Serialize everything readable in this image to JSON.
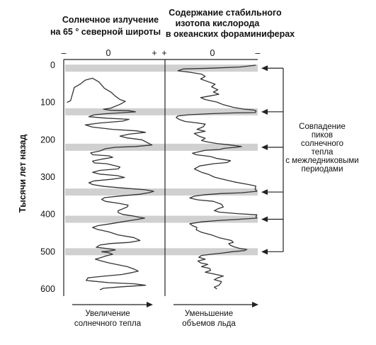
{
  "chart_data": {
    "type": "line",
    "panel_left_title": [
      "Солнечное излучение",
      "на 65 ° северной широты"
    ],
    "panel_right_title": [
      "Содержание стабильного",
      "изотопа кислорода",
      "в океанских фораминиферах"
    ],
    "ylabel": "Тысячи лет назад",
    "yticks": [
      "0",
      "100",
      "200",
      "300",
      "400",
      "500",
      "600"
    ],
    "ylim": [
      0,
      600
    ],
    "left_scale": {
      "minus": "–",
      "zero": "0",
      "plus": "+"
    },
    "right_scale": {
      "plus": "+",
      "zero": "0",
      "minus": "–"
    },
    "xlabel_left": [
      "Увеличение",
      "солнечного тепла"
    ],
    "xlabel_right": [
      "Уменьшение",
      "объемов льда"
    ],
    "annotation": [
      "Совпадение",
      "пиков",
      "солнечного",
      "тепла",
      "с межледниковыми",
      "периодами"
    ],
    "highlight_bands_kyr": [
      8,
      125,
      220,
      340,
      413,
      500
    ],
    "series": [
      {
        "panel": "left",
        "x_domain": [
          0,
          100
        ],
        "points": [
          [
            2,
            100
          ],
          [
            6,
            95
          ],
          [
            10,
            60
          ],
          [
            17,
            50
          ],
          [
            22,
            40
          ],
          [
            30,
            35
          ],
          [
            37,
            45
          ],
          [
            43,
            62
          ],
          [
            50,
            72
          ],
          [
            55,
            83
          ],
          [
            60,
            92
          ],
          [
            66,
            97
          ],
          [
            60,
            105
          ],
          [
            50,
            115
          ],
          [
            42,
            118
          ],
          [
            50,
            121
          ],
          [
            70,
            122
          ],
          [
            77,
            125
          ],
          [
            65,
            127
          ],
          [
            45,
            130
          ],
          [
            32,
            133
          ],
          [
            26,
            138
          ],
          [
            45,
            142
          ],
          [
            70,
            145
          ],
          [
            63,
            150
          ],
          [
            38,
            155
          ],
          [
            22,
            160
          ],
          [
            30,
            166
          ],
          [
            52,
            172
          ],
          [
            78,
            176
          ],
          [
            88,
            180
          ],
          [
            70,
            185
          ],
          [
            60,
            190
          ],
          [
            68,
            195
          ],
          [
            84,
            200
          ],
          [
            88,
            205
          ],
          [
            95,
            214
          ],
          [
            77,
            218
          ],
          [
            55,
            220
          ],
          [
            44,
            224
          ],
          [
            38,
            230
          ],
          [
            28,
            235
          ],
          [
            30,
            240
          ],
          [
            48,
            243
          ],
          [
            52,
            247
          ],
          [
            40,
            252
          ],
          [
            30,
            257
          ],
          [
            32,
            262
          ],
          [
            45,
            264
          ],
          [
            54,
            269
          ],
          [
            60,
            273
          ],
          [
            58,
            278
          ],
          [
            38,
            282
          ],
          [
            30,
            287
          ],
          [
            38,
            292
          ],
          [
            57,
            296
          ],
          [
            65,
            301
          ],
          [
            50,
            306
          ],
          [
            32,
            310
          ],
          [
            26,
            315
          ],
          [
            30,
            320
          ],
          [
            43,
            325
          ],
          [
            67,
            330
          ],
          [
            88,
            334
          ],
          [
            97,
            338
          ],
          [
            93,
            341
          ],
          [
            82,
            346
          ],
          [
            63,
            350
          ],
          [
            43,
            355
          ],
          [
            40,
            360
          ],
          [
            44,
            365
          ],
          [
            58,
            370
          ],
          [
            69,
            375
          ],
          [
            68,
            380
          ],
          [
            63,
            385
          ],
          [
            58,
            390
          ],
          [
            58,
            395
          ],
          [
            63,
            400
          ],
          [
            74,
            404
          ],
          [
            82,
            408
          ],
          [
            87,
            410
          ],
          [
            80,
            413
          ],
          [
            72,
            416
          ],
          [
            62,
            420
          ],
          [
            50,
            425
          ],
          [
            36,
            430
          ],
          [
            30,
            435
          ],
          [
            35,
            440
          ],
          [
            48,
            447
          ],
          [
            58,
            455
          ],
          [
            75,
            462
          ],
          [
            82,
            470
          ],
          [
            70,
            475
          ],
          [
            50,
            478
          ],
          [
            38,
            482
          ],
          [
            34,
            488
          ],
          [
            48,
            492
          ],
          [
            55,
            495
          ],
          [
            49,
            498
          ],
          [
            40,
            500
          ],
          [
            48,
            503
          ],
          [
            52,
            507
          ],
          [
            45,
            511
          ],
          [
            40,
            515
          ],
          [
            33,
            520
          ],
          [
            40,
            525
          ],
          [
            48,
            530
          ],
          [
            58,
            535
          ],
          [
            68,
            540
          ],
          [
            75,
            546
          ],
          [
            80,
            552
          ],
          [
            73,
            556
          ],
          [
            62,
            561
          ],
          [
            40,
            566
          ],
          [
            25,
            570
          ],
          [
            23,
            577
          ],
          [
            48,
            583
          ],
          [
            76,
            586
          ],
          [
            88,
            590
          ],
          [
            62,
            594
          ],
          [
            42,
            598
          ],
          [
            38,
            602
          ]
        ]
      },
      {
        "panel": "right",
        "x_domain": [
          0,
          100
        ],
        "points": [
          [
            98,
            0
          ],
          [
            80,
            5
          ],
          [
            50,
            8
          ],
          [
            18,
            10
          ],
          [
            12,
            15
          ],
          [
            25,
            19
          ],
          [
            38,
            24
          ],
          [
            42,
            30
          ],
          [
            37,
            37
          ],
          [
            45,
            44
          ],
          [
            53,
            51
          ],
          [
            49,
            58
          ],
          [
            56,
            66
          ],
          [
            51,
            72
          ],
          [
            57,
            78
          ],
          [
            46,
            83
          ],
          [
            37,
            87
          ],
          [
            42,
            92
          ],
          [
            55,
            99
          ],
          [
            62,
            106
          ],
          [
            73,
            113
          ],
          [
            85,
            118
          ],
          [
            95,
            120
          ],
          [
            98,
            122
          ],
          [
            98,
            125
          ],
          [
            97,
            127
          ],
          [
            73,
            128
          ],
          [
            48,
            130
          ],
          [
            24,
            133
          ],
          [
            12,
            136
          ],
          [
            10,
            140
          ],
          [
            13,
            145
          ],
          [
            20,
            151
          ],
          [
            31,
            154
          ],
          [
            42,
            158
          ],
          [
            40,
            165
          ],
          [
            33,
            172
          ],
          [
            42,
            177
          ],
          [
            30,
            183
          ],
          [
            35,
            190
          ],
          [
            42,
            196
          ],
          [
            38,
            202
          ],
          [
            45,
            206
          ],
          [
            55,
            210
          ],
          [
            70,
            214
          ],
          [
            82,
            218
          ],
          [
            76,
            220
          ],
          [
            63,
            223
          ],
          [
            58,
            226
          ],
          [
            42,
            228
          ],
          [
            35,
            232
          ],
          [
            28,
            236
          ],
          [
            32,
            240
          ],
          [
            48,
            245
          ],
          [
            55,
            250
          ],
          [
            70,
            256
          ],
          [
            66,
            261
          ],
          [
            52,
            264
          ],
          [
            36,
            270
          ],
          [
            30,
            278
          ],
          [
            38,
            287
          ],
          [
            46,
            293
          ],
          [
            52,
            300
          ],
          [
            64,
            307
          ],
          [
            74,
            313
          ],
          [
            90,
            320
          ],
          [
            98,
            324
          ],
          [
            97,
            332
          ],
          [
            99,
            338
          ],
          [
            82,
            342
          ],
          [
            60,
            344
          ],
          [
            42,
            347
          ],
          [
            30,
            351
          ],
          [
            25,
            356
          ],
          [
            34,
            361
          ],
          [
            51,
            365
          ],
          [
            60,
            373
          ],
          [
            62,
            380
          ],
          [
            56,
            385
          ],
          [
            52,
            390
          ],
          [
            58,
            394
          ],
          [
            78,
            398
          ],
          [
            99,
            401
          ],
          [
            98,
            406
          ],
          [
            99,
            410
          ],
          [
            80,
            413
          ],
          [
            58,
            416
          ],
          [
            38,
            420
          ],
          [
            25,
            425
          ],
          [
            28,
            430
          ],
          [
            33,
            435
          ],
          [
            32,
            441
          ],
          [
            38,
            448
          ],
          [
            49,
            455
          ],
          [
            58,
            463
          ],
          [
            71,
            470
          ],
          [
            73,
            475
          ],
          [
            68,
            478
          ],
          [
            70,
            483
          ],
          [
            74,
            487
          ],
          [
            80,
            491
          ],
          [
            88,
            494
          ],
          [
            85,
            497
          ],
          [
            72,
            500
          ],
          [
            60,
            504
          ],
          [
            48,
            507
          ],
          [
            38,
            510
          ],
          [
            35,
            515
          ],
          [
            42,
            520
          ],
          [
            34,
            525
          ],
          [
            37,
            530
          ],
          [
            45,
            534
          ],
          [
            38,
            540
          ],
          [
            47,
            545
          ],
          [
            48,
            550
          ],
          [
            42,
            555
          ],
          [
            52,
            560
          ],
          [
            62,
            565
          ],
          [
            56,
            570
          ],
          [
            52,
            575
          ],
          [
            60,
            580
          ],
          [
            59,
            585
          ],
          [
            57,
            590
          ],
          [
            52,
            595
          ],
          [
            55,
            600
          ]
        ]
      }
    ]
  }
}
